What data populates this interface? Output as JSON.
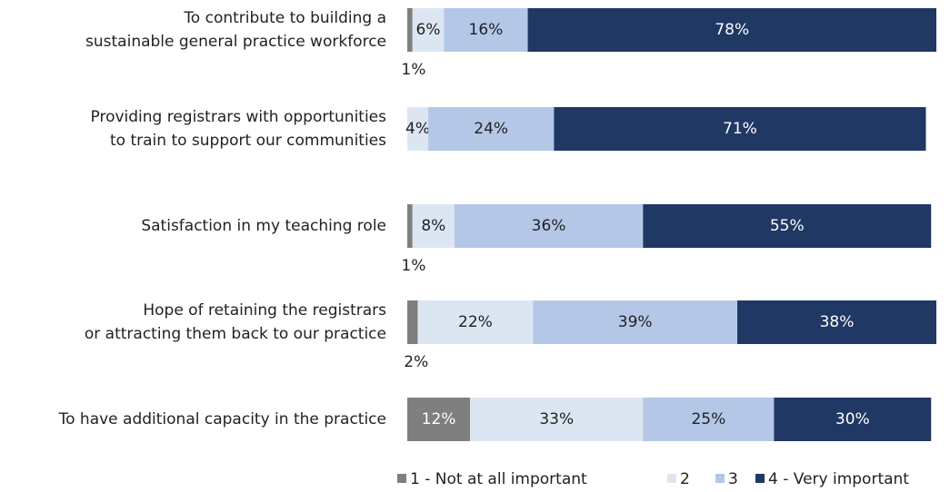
{
  "chart_data": {
    "type": "stacked-bar-horizontal",
    "categories": [
      [
        "To contribute to building a",
        "sustainable general practice workforce"
      ],
      [
        "Providing registrars with opportunities",
        "to train to support our communities"
      ],
      [
        "Satisfaction in my teaching role"
      ],
      [
        "Hope of retaining the registrars",
        "or attracting them back to our practice"
      ],
      [
        "To have additional capacity in the practice"
      ]
    ],
    "series": [
      {
        "name": "1 - Not at all important",
        "color": "#7f7f7f",
        "values": [
          1,
          0,
          1,
          2,
          12
        ],
        "value_labels": [
          "1%",
          null,
          "1%",
          "2%",
          "12%"
        ]
      },
      {
        "name": "2",
        "color": "#dce6f2",
        "values": [
          6,
          4,
          8,
          22,
          33
        ],
        "value_labels": [
          "6%",
          "4%",
          "8%",
          "22%",
          "33%"
        ]
      },
      {
        "name": "3",
        "color": "#b4c7e7",
        "values": [
          16,
          24,
          36,
          39,
          25
        ],
        "value_labels": [
          "16%",
          "24%",
          "36%",
          "39%",
          "25%"
        ]
      },
      {
        "name": "4 - Very important",
        "color": "#203864",
        "values": [
          78,
          71,
          55,
          38,
          30
        ],
        "value_labels": [
          "78%",
          "71%",
          "55%",
          "38%",
          "30%"
        ]
      }
    ],
    "legend": "bottom"
  }
}
